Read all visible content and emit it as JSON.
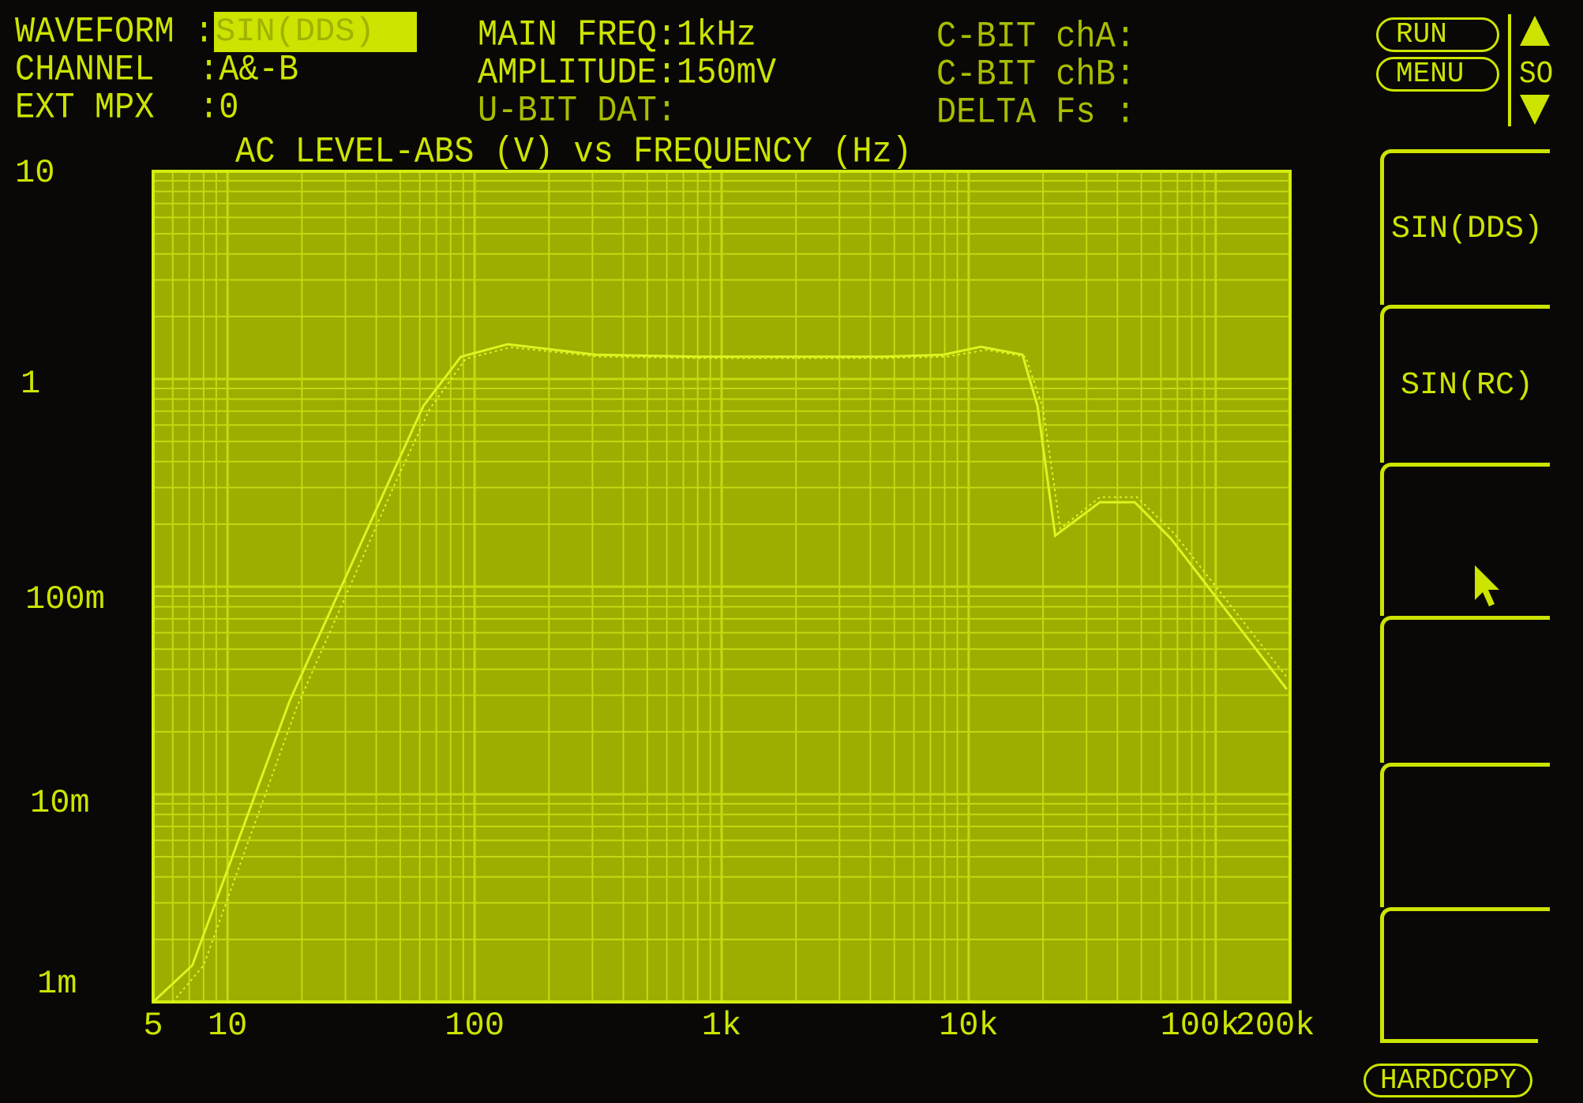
{
  "header": {
    "waveform_label": "WAVEFORM :",
    "waveform_value": "SIN(DDS)",
    "channel_label": "CHANNEL",
    "channel_value": ":A&-B",
    "extmpx_label": "EXT MPX",
    "extmpx_value": ":0",
    "main_freq": "MAIN FREQ:1kHz",
    "amplitude": "AMPLITUDE:150mV",
    "ubit": "U-BIT DAT:",
    "cbit_a": "C-BIT chA:",
    "cbit_b": "C-BIT chB:",
    "delta_fs": "DELTA Fs :"
  },
  "controls": {
    "run": "RUN",
    "menu": "MENU",
    "scroll_label": "SO",
    "hardcopy": "HARDCOPY"
  },
  "softkeys": [
    {
      "label": "SIN(DDS)"
    },
    {
      "label": "SIN(RC)"
    },
    {
      "label": ""
    },
    {
      "label": ""
    },
    {
      "label": ""
    },
    {
      "label": ""
    }
  ],
  "colors": {
    "trace": "#dcf520",
    "plot_bg": "#9cae00",
    "grid": "#c4da10",
    "text": "#cce400"
  },
  "chart_data": {
    "type": "line",
    "title": "AC LEVEL-ABS (V) vs FREQUENCY (Hz)",
    "xscale": "log",
    "yscale": "log",
    "xlim": [
      5,
      200000
    ],
    "ylim": [
      0.001,
      10
    ],
    "grid": true,
    "x_tick_labels": [
      {
        "value": 5,
        "label": "5"
      },
      {
        "value": 10,
        "label": "10"
      },
      {
        "value": 100,
        "label": "100"
      },
      {
        "value": 1000,
        "label": "1k"
      },
      {
        "value": 10000,
        "label": "10k"
      },
      {
        "value": 100000,
        "label": "100k"
      },
      {
        "value": 200000,
        "label": "200k"
      }
    ],
    "y_tick_labels": [
      {
        "value": 10,
        "label": "10"
      },
      {
        "value": 1,
        "label": "1"
      },
      {
        "value": 0.1,
        "label": "100m"
      },
      {
        "value": 0.01,
        "label": "10m"
      },
      {
        "value": 0.001,
        "label": "1m"
      }
    ],
    "series": [
      {
        "style": "solid",
        "points": [
          [
            5,
            0.001
          ],
          [
            7.2,
            0.0015
          ],
          [
            17.8,
            0.028
          ],
          [
            46,
            0.34
          ],
          [
            62,
            0.74
          ],
          [
            88,
            1.28
          ],
          [
            136,
            1.47
          ],
          [
            310,
            1.31
          ],
          [
            790,
            1.28
          ],
          [
            4500,
            1.28
          ],
          [
            7900,
            1.31
          ],
          [
            11200,
            1.43
          ],
          [
            16500,
            1.31
          ],
          [
            19000,
            0.74
          ],
          [
            22400,
            0.176
          ],
          [
            34000,
            0.255
          ],
          [
            47000,
            0.255
          ],
          [
            66000,
            0.17
          ],
          [
            194000,
            0.032
          ]
        ]
      },
      {
        "style": "dotted",
        "points": [
          [
            6,
            0.001
          ],
          [
            8,
            0.0015
          ],
          [
            19,
            0.026
          ],
          [
            48,
            0.32
          ],
          [
            66,
            0.72
          ],
          [
            92,
            1.25
          ],
          [
            140,
            1.42
          ],
          [
            320,
            1.28
          ],
          [
            800,
            1.26
          ],
          [
            4600,
            1.26
          ],
          [
            8100,
            1.28
          ],
          [
            11800,
            1.38
          ],
          [
            17000,
            1.28
          ],
          [
            20000,
            0.72
          ],
          [
            23500,
            0.19
          ],
          [
            34000,
            0.27
          ],
          [
            48000,
            0.27
          ],
          [
            68000,
            0.18
          ],
          [
            196000,
            0.036
          ]
        ]
      }
    ]
  }
}
